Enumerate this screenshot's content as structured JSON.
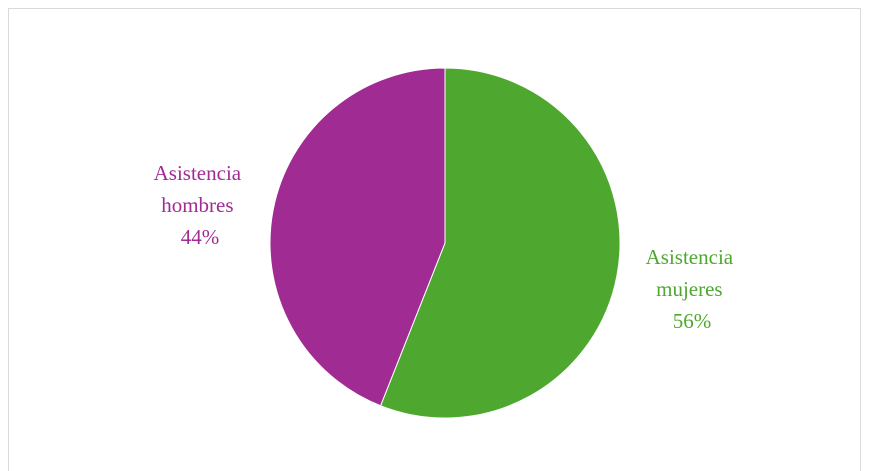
{
  "chart_data": {
    "type": "pie",
    "title": "",
    "slices": [
      {
        "label_line1": "Asistencia",
        "label_line2": "mujeres",
        "percent_label": "56%",
        "value": 56,
        "color": "#4ea72e"
      },
      {
        "label_line1": "Asistencia",
        "label_line2": "hombres",
        "percent_label": "44%",
        "value": 44,
        "color": "#a02b93"
      }
    ],
    "start_angle_deg": 0,
    "direction": "clockwise",
    "legend": "none",
    "data_labels": "outside-end"
  }
}
